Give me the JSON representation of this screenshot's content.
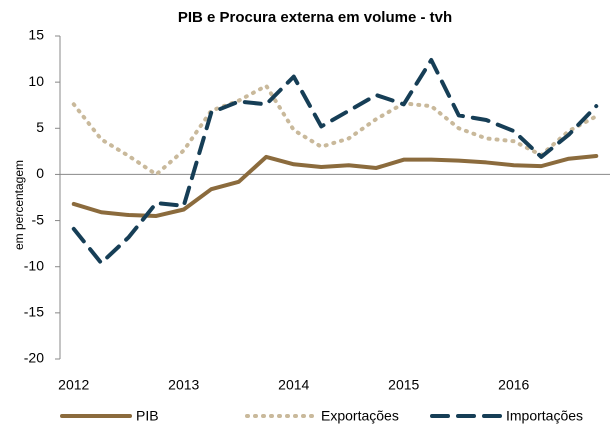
{
  "chart_data": {
    "type": "line",
    "title": "PIB e Procura externa em volume - tvh",
    "y_label": "em percentagem",
    "categories": [
      "2012",
      null,
      null,
      null,
      "2013",
      null,
      null,
      null,
      "2014",
      null,
      null,
      null,
      "2015",
      null,
      null,
      null,
      "2016",
      null,
      null,
      null
    ],
    "series": [
      {
        "name": "PIB",
        "color": "#8b6b3d",
        "style": "solid",
        "values": [
          -3.2,
          -4.1,
          -4.4,
          -4.5,
          -3.8,
          -1.6,
          -0.8,
          1.9,
          1.1,
          0.8,
          1.0,
          0.7,
          1.6,
          1.6,
          1.5,
          1.3,
          1.0,
          0.9,
          1.7,
          2.0
        ]
      },
      {
        "name": "Exportações",
        "color": "#c9b99b",
        "style": "dotted",
        "values": [
          7.6,
          3.8,
          2.0,
          0.0,
          2.6,
          6.9,
          8.0,
          9.6,
          4.8,
          3.0,
          3.9,
          6.0,
          7.7,
          7.4,
          5.0,
          3.9,
          3.6,
          2.1,
          4.7,
          6.3
        ]
      },
      {
        "name": "Importações",
        "color": "#163e56",
        "style": "dashed",
        "values": [
          -5.9,
          -9.6,
          -6.8,
          -3.1,
          -3.4,
          6.7,
          7.9,
          7.6,
          10.6,
          5.2,
          6.9,
          8.6,
          7.6,
          12.4,
          6.4,
          5.9,
          4.7,
          1.9,
          4.3,
          7.4
        ]
      }
    ],
    "ylim": [
      -20,
      15
    ],
    "yticks": [
      -20,
      -15,
      -10,
      -5,
      0,
      5,
      10,
      15
    ],
    "legend": "bottom"
  }
}
